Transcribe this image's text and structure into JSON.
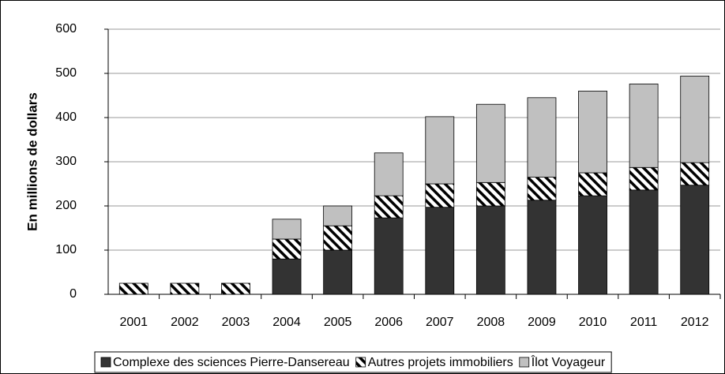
{
  "chart_data": {
    "type": "bar",
    "stacked": true,
    "y_label": "En millions de dollars",
    "categories": [
      "2001",
      "2002",
      "2003",
      "2004",
      "2005",
      "2006",
      "2007",
      "2008",
      "2009",
      "2010",
      "2011",
      "2012"
    ],
    "series": [
      {
        "name": "Complexe des sciences Pierre-Dansereau",
        "color": "#333333",
        "values": [
          0,
          0,
          0,
          80,
          100,
          173,
          197,
          200,
          213,
          223,
          236,
          247
        ]
      },
      {
        "name": "Autres projets immobiliers",
        "color": "#ffffff",
        "hatch": true,
        "values": [
          25,
          25,
          25,
          45,
          55,
          50,
          53,
          53,
          52,
          52,
          51,
          51
        ]
      },
      {
        "name": "Îlot Voyageur",
        "color": "#c0c0c0",
        "values": [
          0,
          0,
          0,
          45,
          45,
          97,
          152,
          177,
          180,
          185,
          189,
          196
        ]
      }
    ],
    "ylim": [
      0,
      600
    ],
    "yticks": [
      0,
      100,
      200,
      300,
      400,
      500,
      600
    ],
    "grid": true,
    "legend": "bottom"
  }
}
